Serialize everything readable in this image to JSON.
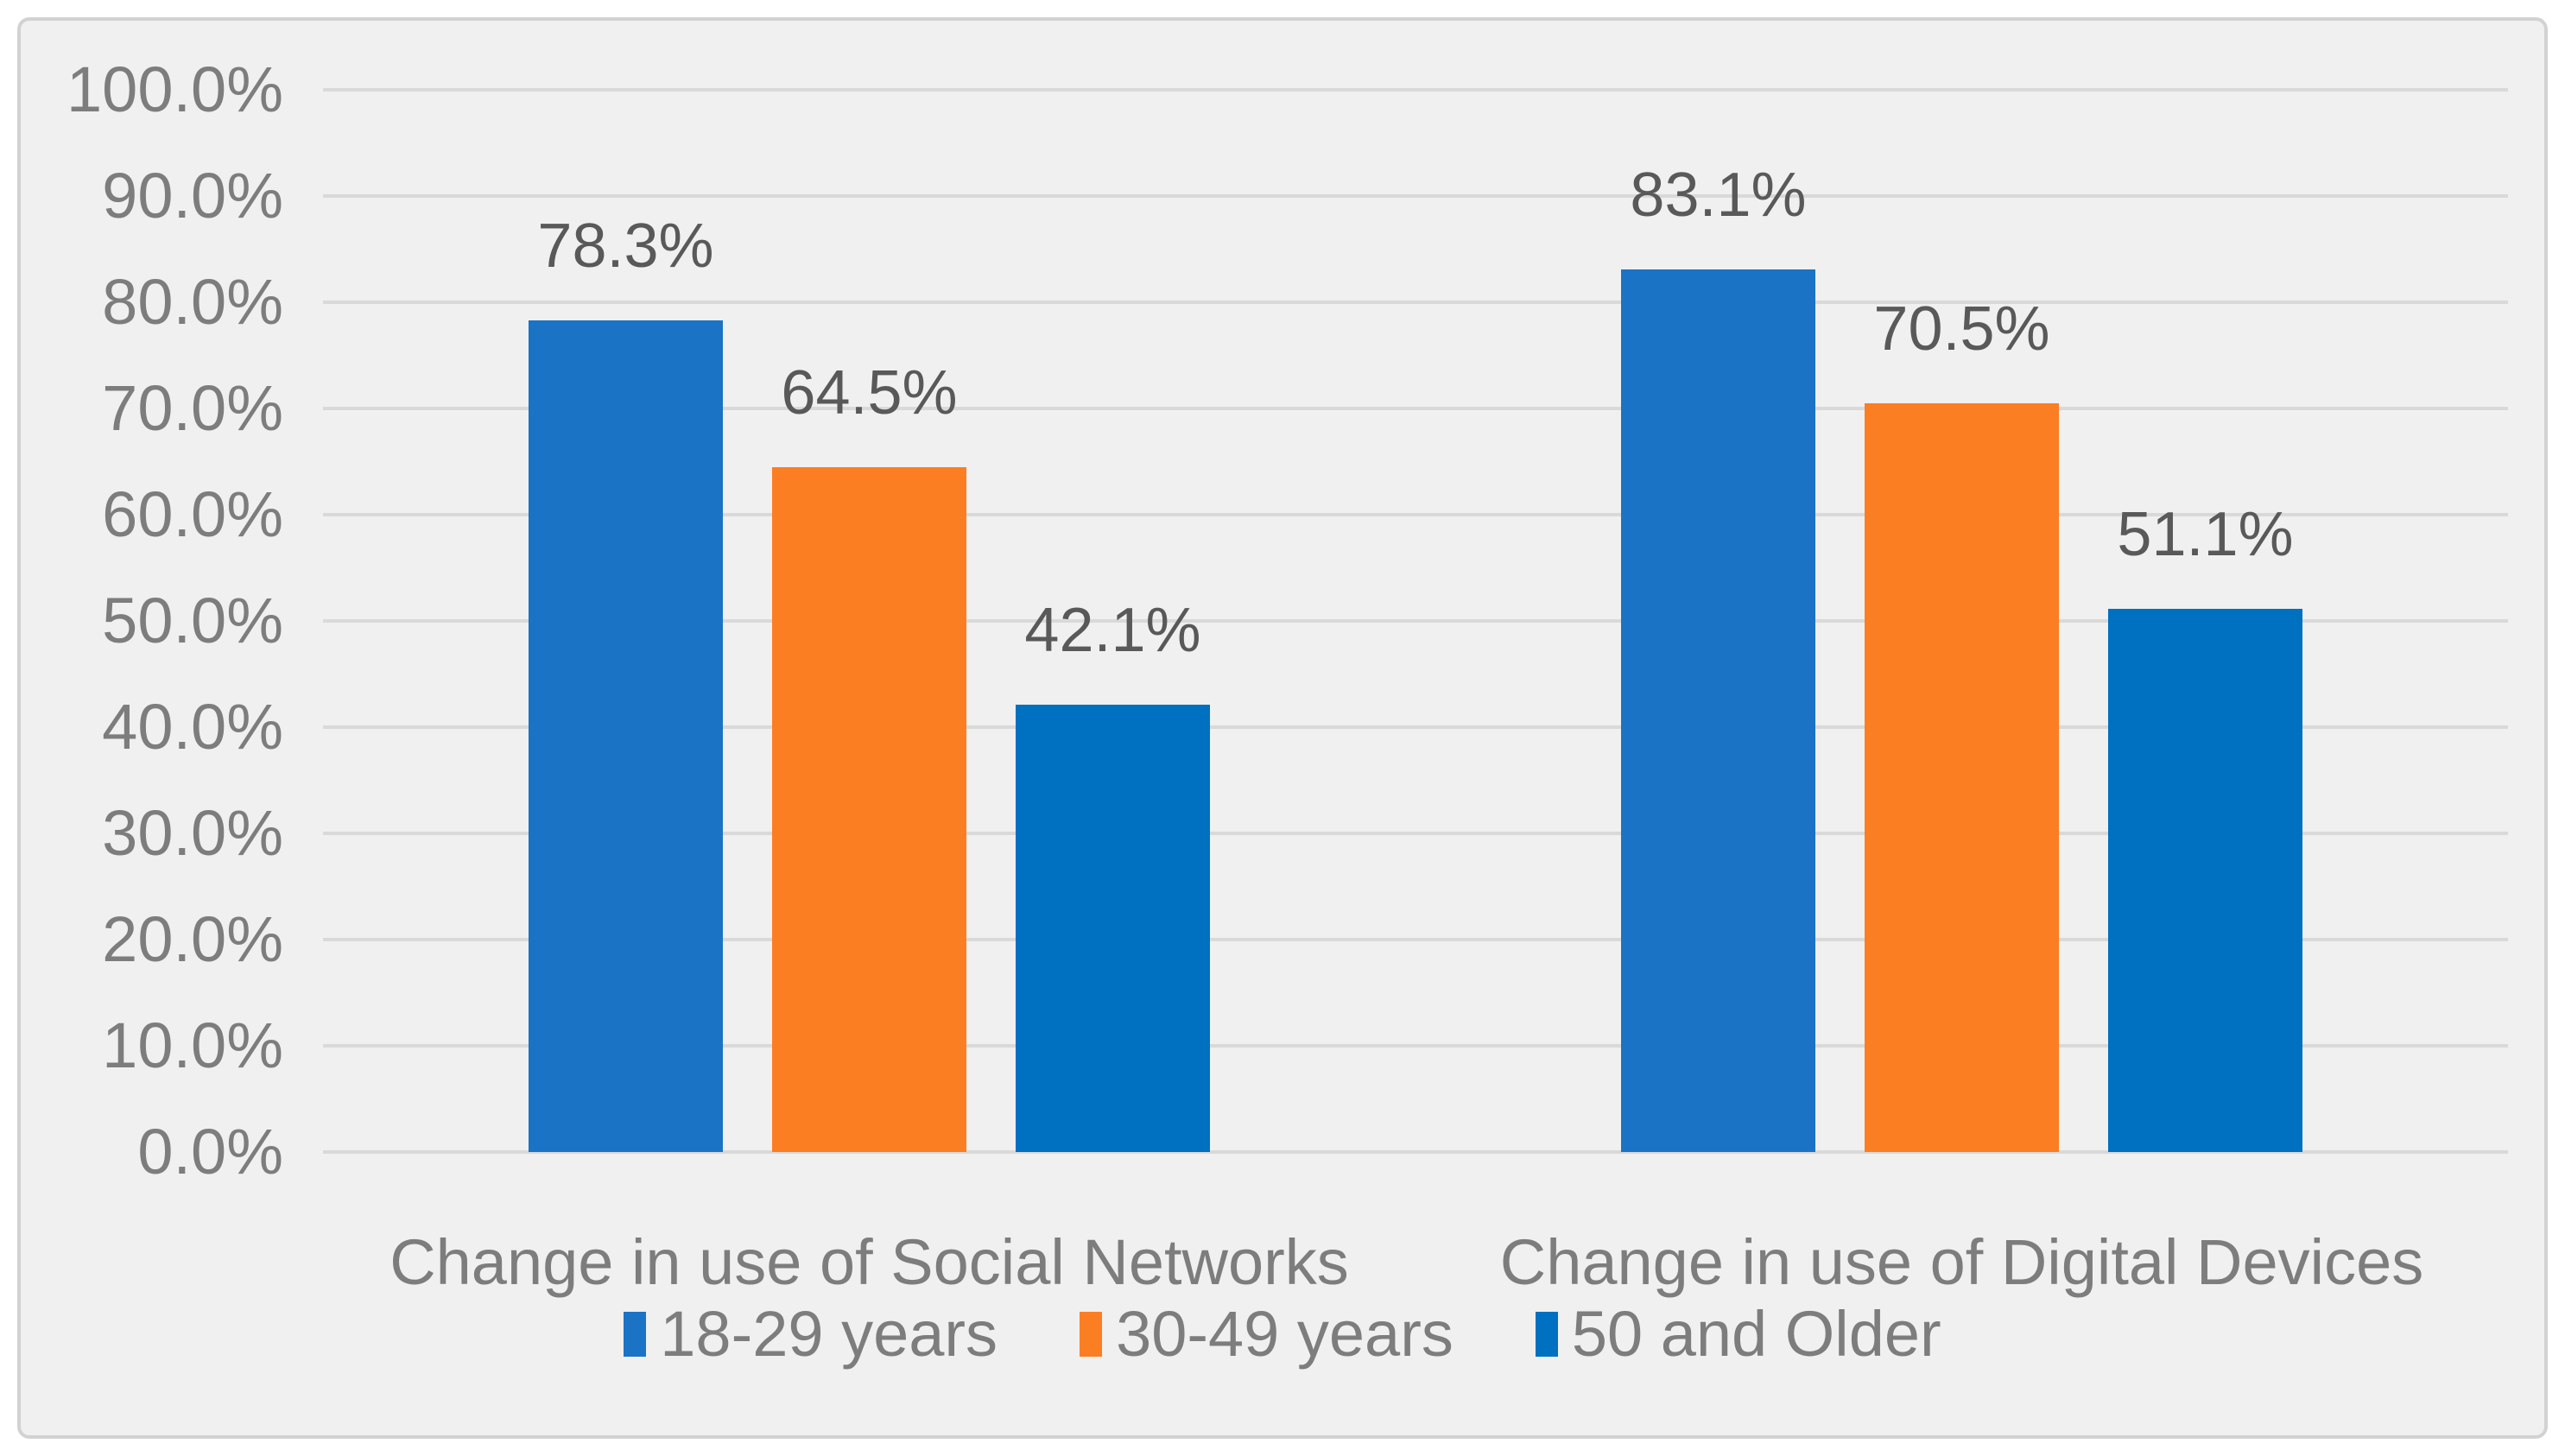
{
  "chart_data": {
    "type": "bar",
    "title": "",
    "categories": [
      "Change in use of Social Networks",
      "Change in use of Digital Devices"
    ],
    "series": [
      {
        "name": "18-29 years",
        "color": "#1B73C5",
        "values": [
          78.3,
          83.1
        ],
        "labels": [
          "78.3%",
          "83.1%"
        ]
      },
      {
        "name": "30-49 years",
        "color": "#FC7E23",
        "values": [
          64.5,
          70.5
        ],
        "labels": [
          "64.5%",
          "70.5%"
        ]
      },
      {
        "name": "50 and Older",
        "color": "#0070C0",
        "values": [
          42.1,
          51.1
        ],
        "labels": [
          "42.1%",
          "51.1%"
        ]
      }
    ],
    "xlabel": "",
    "ylabel": "",
    "ylim": [
      0,
      100
    ],
    "ytick_step": 10,
    "yticks": [
      "100.0%",
      "90.0%",
      "80.0%",
      "70.0%",
      "60.0%",
      "50.0%",
      "40.0%",
      "30.0%",
      "20.0%",
      "10.0%",
      "0.0%"
    ],
    "grid": true,
    "legend_position": "bottom",
    "colors": {
      "plot_background": "#F0F0F0",
      "page_background": "#FFFFFF",
      "frame_border": "#D2D2D2",
      "gridline": "#D9D9D9",
      "tick_label": "#7D7D7D",
      "value_label": "#595959",
      "category_label": "#7D7D7D",
      "legend_label": "#7D7D7D"
    }
  }
}
